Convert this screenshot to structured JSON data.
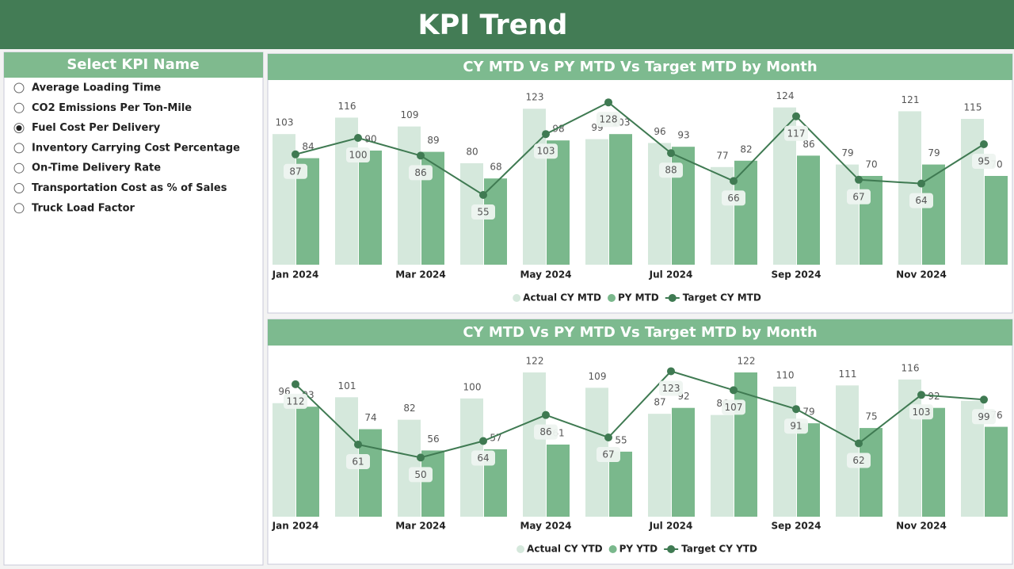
{
  "header": {
    "title": "KPI Trend"
  },
  "slicer": {
    "title": "Select KPI Name",
    "options": [
      "Average Loading Time",
      "CO2 Emissions Per Ton-Mile",
      "Fuel Cost Per Delivery",
      "Inventory Carrying Cost Percentage",
      "On-Time Delivery Rate",
      "Transportation Cost as % of Sales",
      "Truck Load Factor"
    ],
    "selected": 2
  },
  "chart_data": [
    {
      "type": "combo",
      "title": "CY MTD Vs PY MTD Vs Target MTD by Month",
      "categories": [
        "Jan 2024",
        null,
        "Mar 2024",
        null,
        "May 2024",
        null,
        "Jul 2024",
        null,
        "Sep 2024",
        null,
        "Nov 2024",
        null
      ],
      "ylim": [
        0,
        130
      ],
      "series": [
        {
          "name": "Actual CY MTD",
          "type": "bar",
          "color": "#d5e8dc",
          "values": [
            103,
            116,
            109,
            80,
            123,
            99,
            96,
            77,
            124,
            79,
            121,
            115
          ]
        },
        {
          "name": "PY MTD",
          "type": "bar",
          "color": "#7ab88c",
          "values": [
            84,
            90,
            89,
            68,
            98,
            103,
            93,
            82,
            86,
            70,
            79,
            70
          ]
        },
        {
          "name": "Target CY MTD",
          "type": "line",
          "color": "#3f7a52",
          "values": [
            87,
            100,
            86,
            55,
            103,
            128,
            88,
            66,
            117,
            67,
            64,
            95
          ]
        }
      ]
    },
    {
      "type": "combo",
      "title": "CY MTD Vs PY MTD Vs Target MTD by Month",
      "categories": [
        "Jan 2024",
        null,
        "Mar 2024",
        null,
        "May 2024",
        null,
        "Jul 2024",
        null,
        "Sep 2024",
        null,
        "Nov 2024",
        null
      ],
      "ylim": [
        0,
        130
      ],
      "series": [
        {
          "name": "Actual CY YTD",
          "type": "bar",
          "color": "#d5e8dc",
          "values": [
            96,
            101,
            82,
            100,
            122,
            109,
            87,
            86,
            110,
            111,
            116,
            98
          ],
          "value_labels": [
            "96",
            "101",
            "82",
            "100",
            "122",
            "109",
            "87",
            "86",
            "110",
            "111",
            "116",
            null
          ]
        },
        {
          "name": "PY YTD",
          "type": "bar",
          "color": "#7ab88c",
          "values": [
            93,
            74,
            56,
            57,
            61,
            55,
            92,
            122,
            79,
            75,
            92,
            76
          ]
        },
        {
          "name": "Target CY YTD",
          "type": "line",
          "color": "#3f7a52",
          "values": [
            112,
            61,
            50,
            64,
            86,
            67,
            123,
            107,
            91,
            62,
            103,
            99
          ]
        }
      ]
    }
  ]
}
